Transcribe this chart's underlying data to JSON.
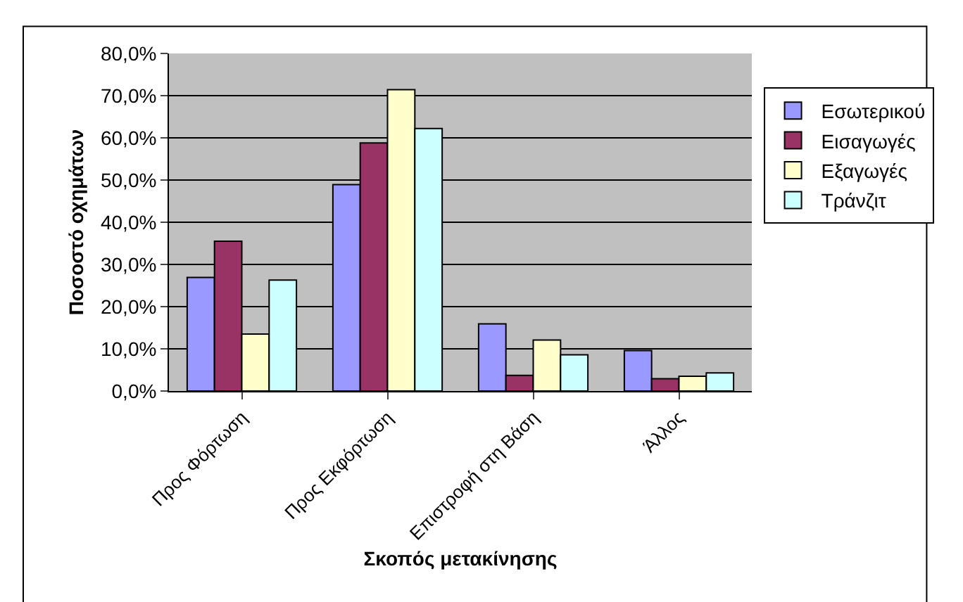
{
  "chart_data": {
    "type": "bar",
    "xlabel": "Σκοπός μετακίνησης",
    "ylabel": "Ποσοστό οχημάτων",
    "categories": [
      "Προς Φόρτωση",
      "Προς Εκφόρτωση",
      "Επιστροφή στη Βάση",
      "Άλλος"
    ],
    "series": [
      {
        "name": "Εσωτερικού",
        "color": "#9999ff",
        "values": [
          26.9,
          48.9,
          15.9,
          9.6
        ]
      },
      {
        "name": "Εισαγωγές",
        "color": "#993366",
        "values": [
          35.5,
          58.8,
          3.7,
          2.9
        ]
      },
      {
        "name": "Εξαγωγές",
        "color": "#ffffcc",
        "values": [
          13.5,
          71.4,
          12.1,
          3.5
        ]
      },
      {
        "name": "Τράνζιτ",
        "color": "#ccffff",
        "values": [
          26.3,
          62.2,
          8.6,
          4.3
        ]
      }
    ],
    "ylim": [
      0,
      80
    ],
    "yticks": [
      {
        "value": 0,
        "label": "0,0%"
      },
      {
        "value": 10,
        "label": "10,0%"
      },
      {
        "value": 20,
        "label": "20,0%"
      },
      {
        "value": 30,
        "label": "30,0%"
      },
      {
        "value": 40,
        "label": "40,0%"
      },
      {
        "value": 50,
        "label": "50,0%"
      },
      {
        "value": 60,
        "label": "60,0%"
      },
      {
        "value": 70,
        "label": "70,0%"
      },
      {
        "value": 80,
        "label": "80,0%"
      }
    ],
    "grid": "y",
    "legend": "right"
  }
}
